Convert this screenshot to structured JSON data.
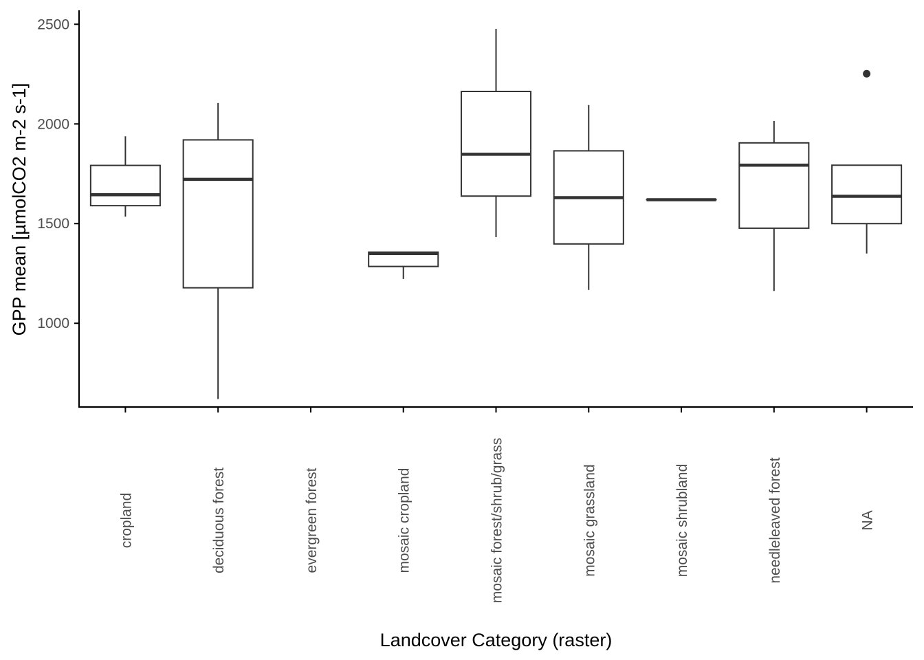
{
  "chart_data": {
    "type": "boxplot",
    "title": "",
    "xlabel": "Landcover Category (raster)",
    "ylabel": "GPP mean [µmolCO2 m-2 s-1]",
    "ylim": [
      580,
      2570
    ],
    "y_ticks": [
      1000,
      1500,
      2000,
      2500
    ],
    "grid": false,
    "legend": "none",
    "categories": [
      "cropland",
      "deciduous forest",
      "evergreen forest",
      "mosaic cropland",
      "mosaic forest/shrub/grass",
      "mosaic grassland",
      "mosaic shrubland",
      "needleleaved forest",
      "NA"
    ],
    "boxes": [
      {
        "category": "cropland",
        "whisker_low": 1535,
        "q1": 1590,
        "median": 1645,
        "q3": 1792,
        "whisker_high": 1938,
        "outliers": []
      },
      {
        "category": "deciduous forest",
        "whisker_low": 620,
        "q1": 1178,
        "median": 1722,
        "q3": 1920,
        "whisker_high": 2105,
        "outliers": []
      },
      {
        "category": "evergreen forest",
        "whisker_low": null,
        "q1": null,
        "median": null,
        "q3": null,
        "whisker_high": null,
        "outliers": []
      },
      {
        "category": "mosaic cropland",
        "whisker_low": 1222,
        "q1": 1285,
        "median": 1350,
        "q3": 1357,
        "whisker_high": 1357,
        "outliers": []
      },
      {
        "category": "mosaic forest/shrub/grass",
        "whisker_low": 1432,
        "q1": 1638,
        "median": 1848,
        "q3": 2163,
        "whisker_high": 2477,
        "outliers": []
      },
      {
        "category": "mosaic grassland",
        "whisker_low": 1167,
        "q1": 1398,
        "median": 1630,
        "q3": 1865,
        "whisker_high": 2095,
        "outliers": []
      },
      {
        "category": "mosaic shrubland",
        "whisker_low": 1620,
        "q1": 1620,
        "median": 1620,
        "q3": 1620,
        "whisker_high": 1620,
        "outliers": []
      },
      {
        "category": "needleleaved forest",
        "whisker_low": 1162,
        "q1": 1477,
        "median": 1793,
        "q3": 1905,
        "whisker_high": 2015,
        "outliers": []
      },
      {
        "category": "NA",
        "whisker_low": 1350,
        "q1": 1500,
        "median": 1637,
        "q3": 1793,
        "whisker_high": 1793,
        "outliers": [
          2252
        ]
      }
    ],
    "colors": {
      "box_line": "#333333",
      "box_fill": "#ffffff",
      "axis": "#000000",
      "tick_text": "#4d4d4d",
      "title_text": "#000000"
    }
  }
}
